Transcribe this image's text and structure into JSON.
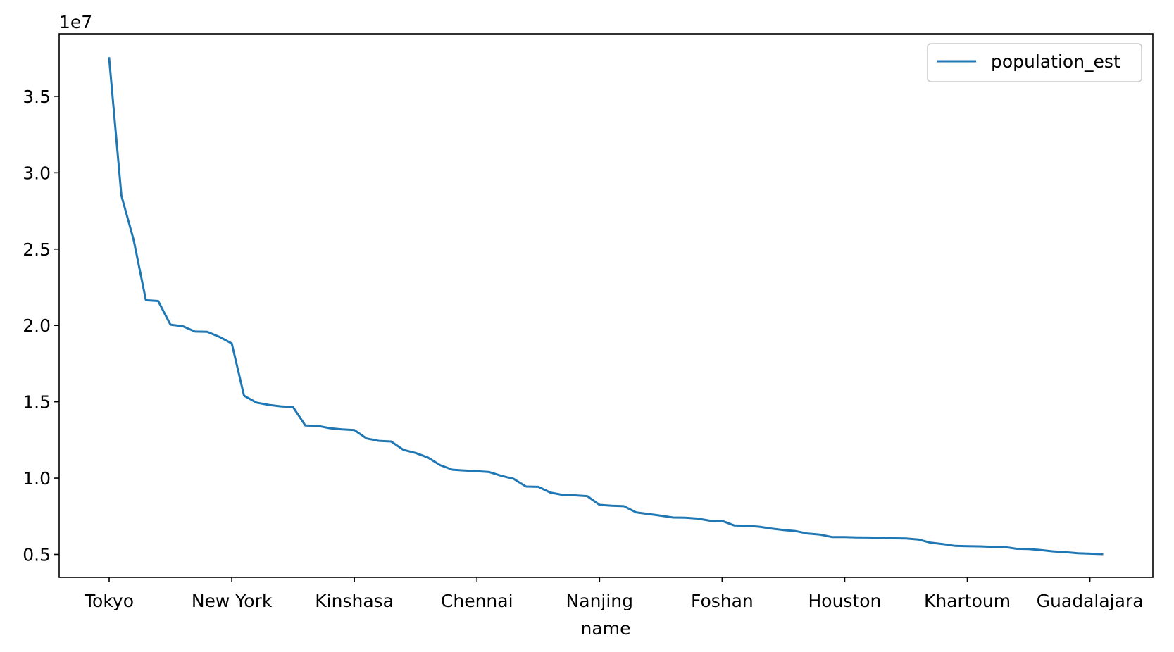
{
  "chart_data": {
    "type": "line",
    "title": "",
    "xlabel": "name",
    "ylabel": "",
    "y_offset_text": "1e7",
    "ylim": [
      3500000,
      39100000
    ],
    "yticks": [
      5000000,
      10000000,
      15000000,
      20000000,
      25000000,
      30000000,
      35000000
    ],
    "ytick_labels": [
      "0.5",
      "1.0",
      "1.5",
      "2.0",
      "2.5",
      "3.0",
      "3.5"
    ],
    "xtick_positions": [
      0,
      10,
      20,
      30,
      40,
      50,
      60,
      70,
      80
    ],
    "xtick_labels": [
      "Tokyo",
      "New York",
      "Kinshasa",
      "Chennai",
      "Nanjing",
      "Foshan",
      "Houston",
      "Khartoum",
      "Guadalajara"
    ],
    "grid": false,
    "legend_position": "top-right",
    "color": "#1f77b4",
    "series": [
      {
        "name": "population_est",
        "values": [
          37500000,
          28500000,
          25600000,
          21650000,
          21600000,
          20050000,
          19950000,
          19600000,
          19580000,
          19250000,
          18820000,
          15400000,
          14950000,
          14800000,
          14700000,
          14650000,
          13450000,
          13430000,
          13270000,
          13200000,
          13150000,
          12600000,
          12440000,
          12400000,
          11850000,
          11650000,
          11350000,
          10850000,
          10550000,
          10500000,
          10450000,
          10400000,
          10150000,
          9950000,
          9450000,
          9430000,
          9050000,
          8900000,
          8870000,
          8820000,
          8250000,
          8190000,
          8160000,
          7750000,
          7650000,
          7540000,
          7420000,
          7410000,
          7350000,
          7210000,
          7200000,
          6900000,
          6880000,
          6820000,
          6700000,
          6600000,
          6530000,
          6370000,
          6300000,
          6140000,
          6140000,
          6120000,
          6110000,
          6080000,
          6060000,
          6050000,
          5980000,
          5770000,
          5680000,
          5560000,
          5540000,
          5530000,
          5500000,
          5490000,
          5370000,
          5360000,
          5290000,
          5200000,
          5150000,
          5080000,
          5050000,
          5020000
        ]
      }
    ]
  }
}
